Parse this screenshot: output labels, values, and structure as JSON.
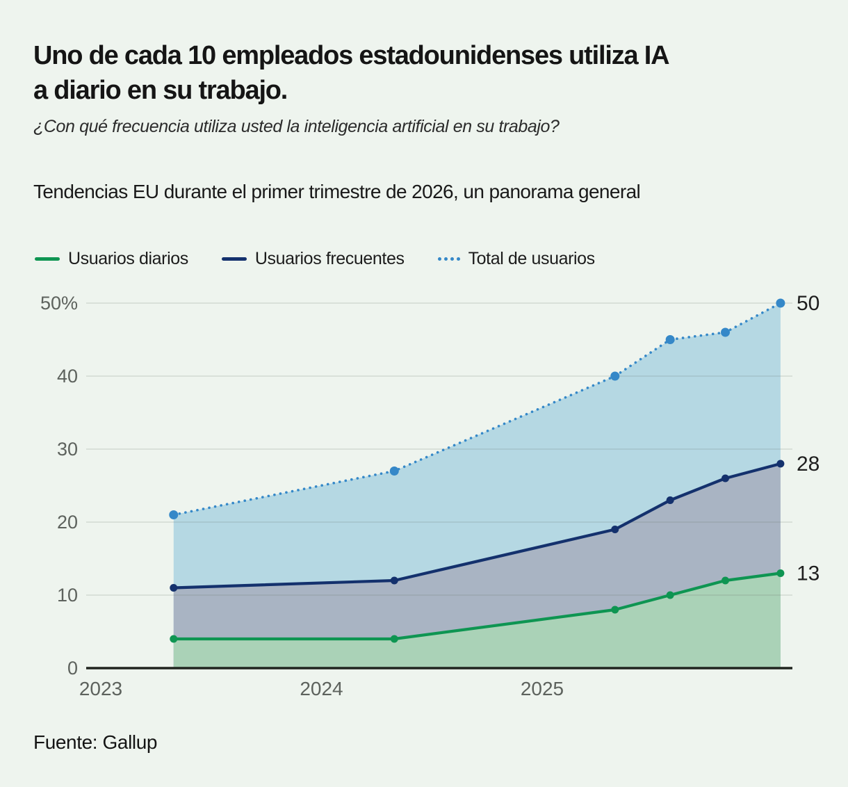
{
  "header": {
    "title_lines": [
      "Uno de cada 10 empleados estadounidenses utiliza IA",
      "a diario en su trabajo."
    ],
    "subtitle": "¿Con qué frecuencia utiliza usted la inteligencia artificial en su trabajo?",
    "section_label": "Tendencias EU durante el primer trimestre de 2026, un panorama general"
  },
  "legend": [
    {
      "label": "Usuarios diarios",
      "color": "#0e9552",
      "style": "solid"
    },
    {
      "label": "Usuarios frecuentes",
      "color": "#14316d",
      "style": "solid"
    },
    {
      "label": "Total de usuarios",
      "color": "#3588c8",
      "style": "dotted"
    }
  ],
  "source": "Fuente: Gallup",
  "colors": {
    "background": "#eef4ee",
    "axis_line": "#20241f",
    "tick_label": "#5d625d",
    "end_label": "#1e1e1e",
    "gridline": "#6b746c"
  },
  "chart_data": {
    "type": "area",
    "x_tick_labels": [
      "2023",
      "2024",
      "2025"
    ],
    "x": [
      2023.33,
      2024.33,
      2025.33,
      2025.58,
      2025.83,
      2026.08
    ],
    "series": [
      {
        "name": "Total de usuarios",
        "values": [
          21,
          27,
          40,
          45,
          46,
          50
        ],
        "line_color": "#3588c8",
        "fill_color": "#b5d8e3",
        "style": "dotted"
      },
      {
        "name": "Usuarios frecuentes",
        "values": [
          11,
          12,
          19,
          23,
          26,
          28
        ],
        "line_color": "#14316d",
        "fill_color": "#a9b4c3",
        "style": "solid"
      },
      {
        "name": "Usuarios diarios",
        "values": [
          4,
          4,
          8,
          10,
          12,
          13
        ],
        "line_color": "#0e9552",
        "fill_color": "#aad2b7",
        "style": "solid"
      }
    ],
    "end_labels": [
      "50",
      "28",
      "13"
    ],
    "ylim": [
      0,
      50
    ],
    "y_ticks": [
      0,
      10,
      20,
      30,
      40,
      50
    ],
    "y_tick_labels": [
      "0",
      "10",
      "20",
      "30",
      "40",
      "50%"
    ],
    "grid": true,
    "legend_position": "top"
  }
}
